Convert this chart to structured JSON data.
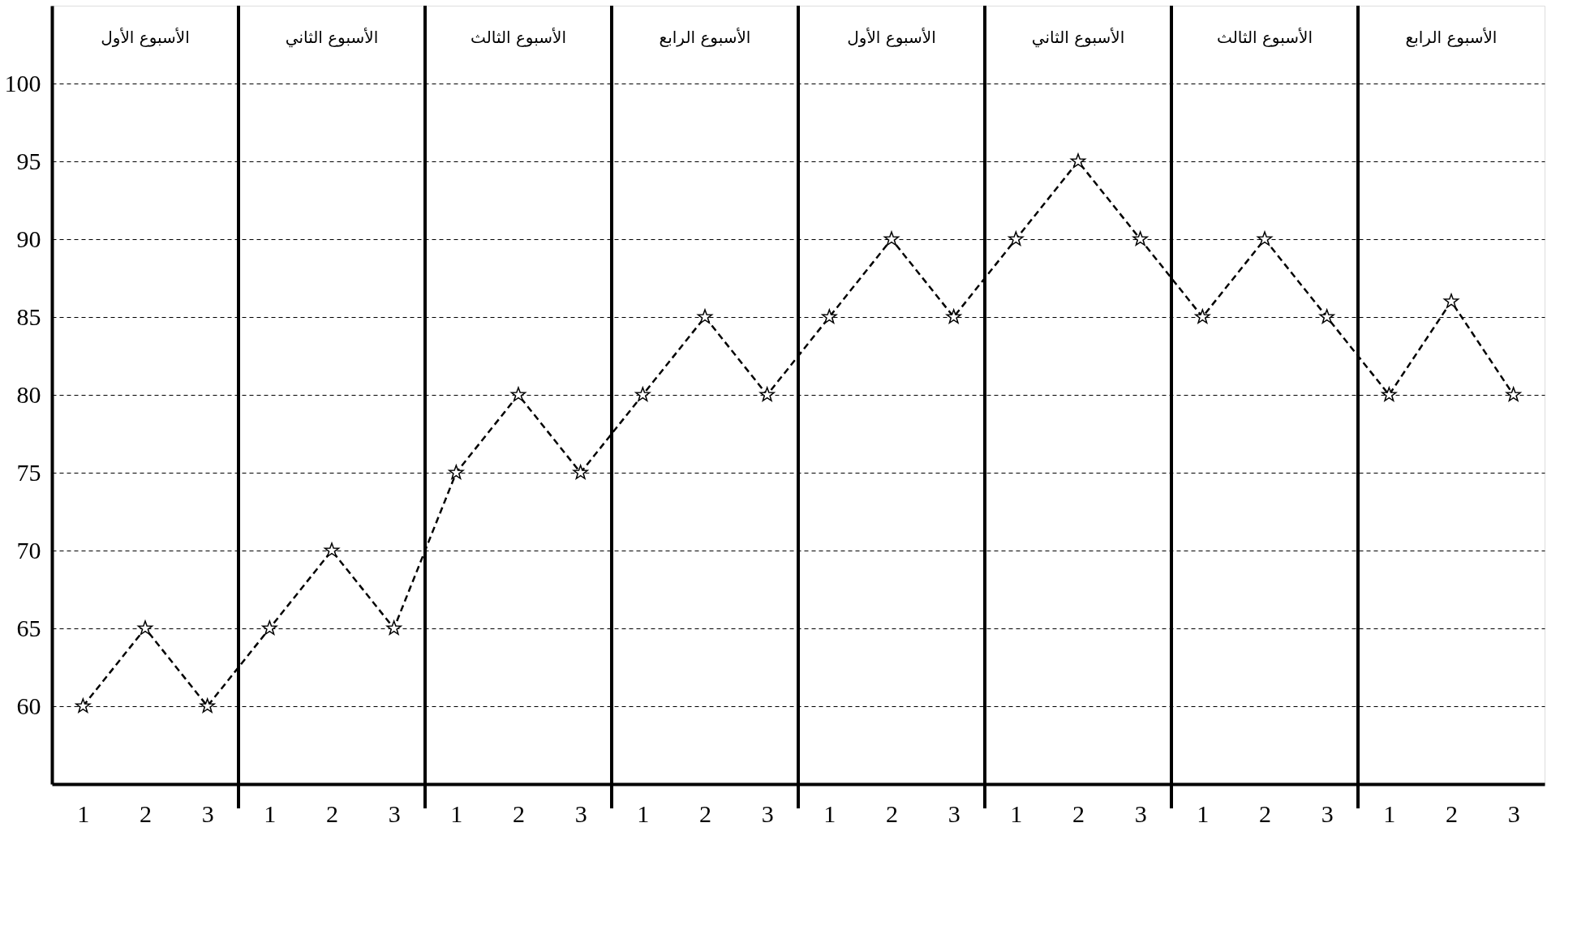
{
  "chart_data": {
    "type": "line",
    "categories": [
      "1",
      "2",
      "3",
      "1",
      "2",
      "3",
      "1",
      "2",
      "3",
      "1",
      "2",
      "3",
      "1",
      "2",
      "3",
      "1",
      "2",
      "3",
      "1",
      "2",
      "3",
      "1",
      "2",
      "3"
    ],
    "series": [
      {
        "color": "#000000",
        "values": [
          60,
          65,
          60,
          65,
          70,
          65,
          75,
          80,
          75,
          80,
          85,
          80,
          85,
          90,
          85,
          90,
          95,
          90,
          85,
          90,
          85,
          80,
          86,
          80
        ]
      }
    ],
    "annotations": [
      "الأسبوع الأول",
      "الأسبوع الثاني",
      "الأسبوع الثالث",
      "الأسبوع الرابع",
      "الأسبوع الأول",
      "الأسبوع الثاني",
      "الأسبوع الثالث",
      "الأسبوع الرابع"
    ],
    "ylim": [
      55,
      105
    ],
    "yticks": [
      60,
      65,
      70,
      75,
      80,
      85,
      90,
      95,
      100
    ],
    "grid": "y",
    "marker": "star",
    "line_style": "dashed"
  }
}
